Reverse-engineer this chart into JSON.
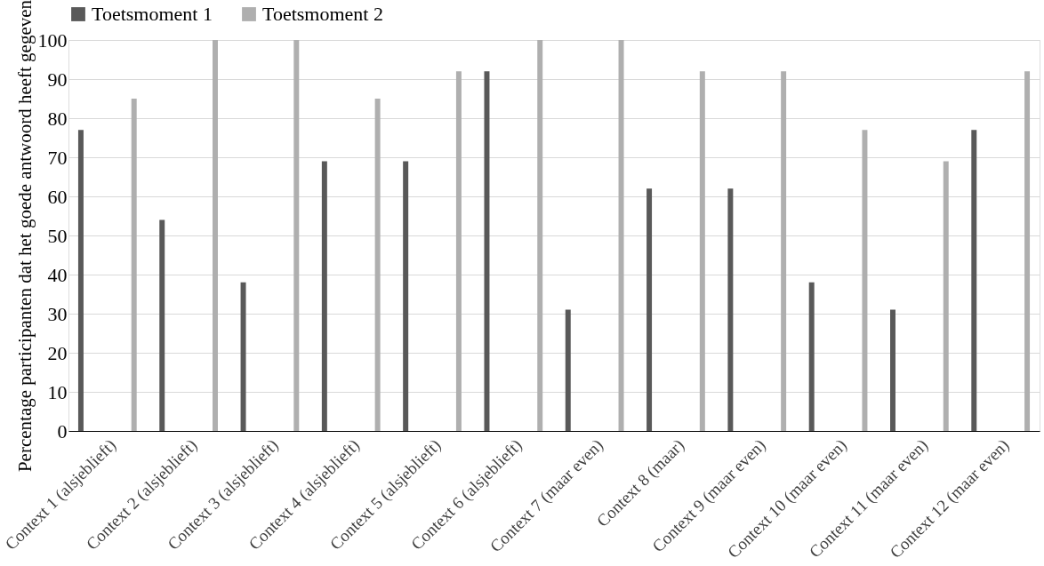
{
  "chart_data": {
    "type": "bar",
    "ylabel": "Percentage participanten dat het goede antwoord heeft gegeven",
    "categories": [
      "Context 1 (alsjeblieft)",
      "Context 2 (alsjeblieft)",
      "Context 3 (alsjeblieft)",
      "Context 4 (alsjeblieft)",
      "Context 5 (alsjeblieft)",
      "Context 6 (alsjeblieft)",
      "Context 7 (maar even)",
      "Context 8 (maar)",
      "Context 9 (maar even)",
      "Context 10 (maar even)",
      "Context 11 (maar even)",
      "Context 12 (maar even)"
    ],
    "series": [
      {
        "name": "Toetsmoment 1",
        "color": "#595959",
        "values": [
          77,
          54,
          38,
          69,
          69,
          92,
          31,
          62,
          62,
          38,
          31,
          77
        ]
      },
      {
        "name": "Toetsmoment 2",
        "color": "#afafaf",
        "values": [
          85,
          100,
          100,
          85,
          92,
          100,
          100,
          92,
          92,
          77,
          69,
          92
        ]
      }
    ],
    "ylim": [
      0,
      100
    ],
    "yticks": [
      0,
      10,
      20,
      30,
      40,
      50,
      60,
      70,
      80,
      90,
      100
    ],
    "grid": "y",
    "legend": "top"
  }
}
